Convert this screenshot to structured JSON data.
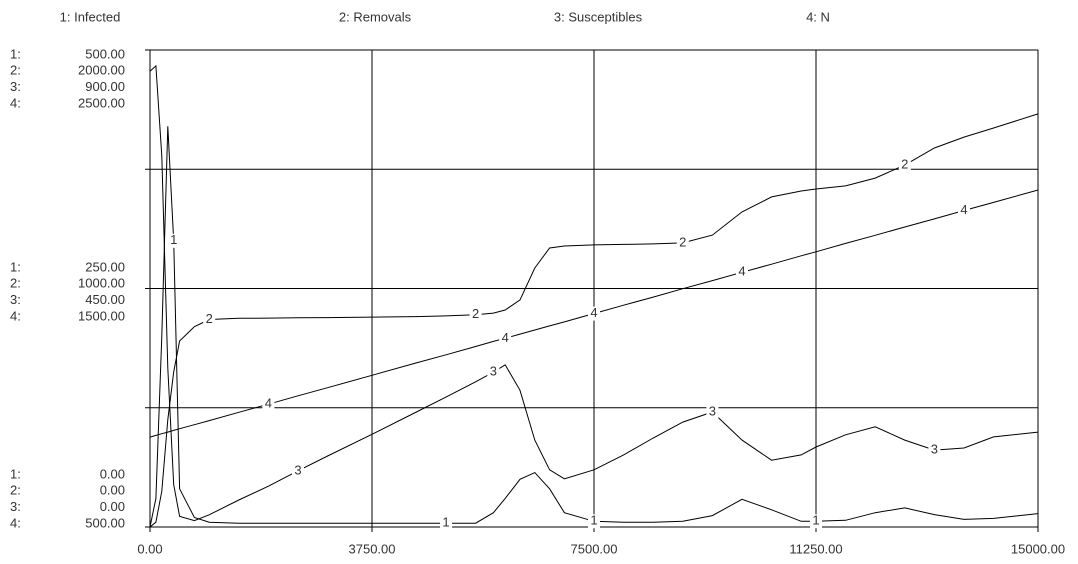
{
  "chart_data": {
    "type": "line",
    "grid": true,
    "x": [
      0,
      100,
      200,
      300,
      400,
      500,
      750,
      1000,
      1500,
      2000,
      2500,
      3000,
      3750,
      4500,
      5000,
      5500,
      5800,
      6000,
      6250,
      6500,
      6750,
      7000,
      7500,
      8000,
      8500,
      9000,
      9500,
      10000,
      10500,
      11000,
      11250,
      11750,
      12250,
      12750,
      13250,
      13750,
      14250,
      15000
    ],
    "xlim": [
      0,
      15000
    ],
    "xticks": [
      {
        "value": 0,
        "label": "0.00"
      },
      {
        "value": 3750,
        "label": "3750.00"
      },
      {
        "value": 7500,
        "label": "7500.00"
      },
      {
        "value": 11250,
        "label": "11250.00"
      },
      {
        "value": 15000,
        "label": "15000.00"
      }
    ],
    "ygrid": [
      0,
      125,
      250,
      375,
      500
    ],
    "series": [
      {
        "name": "1: Infected",
        "axis_label": "1:",
        "marker": "1",
        "color": "#000000",
        "ylim": [
          0,
          500
        ],
        "yticks": [
          {
            "value": 0,
            "label": "0.00"
          },
          {
            "value": 250,
            "label": "250.00"
          },
          {
            "value": 500,
            "label": "500.00"
          }
        ],
        "values": [
          0,
          30,
          200,
          420,
          300,
          40,
          10,
          5,
          4,
          4,
          4,
          4,
          4,
          4,
          4,
          4,
          15,
          30,
          50,
          57,
          40,
          15,
          6,
          5,
          5,
          6,
          12,
          29,
          18,
          6,
          6,
          7,
          15,
          20,
          13,
          8,
          9,
          14
        ]
      },
      {
        "name": "2: Removals",
        "axis_label": "2:",
        "marker": "2",
        "color": "#000000",
        "ylim": [
          0,
          2000
        ],
        "yticks": [
          {
            "value": 0,
            "label": "0.00"
          },
          {
            "value": 1000,
            "label": "1000.00"
          },
          {
            "value": 2000,
            "label": "2000.00"
          }
        ],
        "values": [
          0,
          20,
          150,
          450,
          650,
          780,
          840,
          870,
          875,
          876,
          877,
          878,
          880,
          882,
          885,
          890,
          897,
          910,
          952,
          1086,
          1170,
          1178,
          1183,
          1185,
          1187,
          1191,
          1224,
          1321,
          1384,
          1409,
          1417,
          1430,
          1463,
          1518,
          1589,
          1635,
          1673,
          1732
        ]
      },
      {
        "name": "3: Susceptibles",
        "axis_label": "3:",
        "marker": "3",
        "color": "#000000",
        "ylim": [
          0,
          900
        ],
        "yticks": [
          {
            "value": 0,
            "label": "0.00"
          },
          {
            "value": 450,
            "label": "450.00"
          },
          {
            "value": 900,
            "label": "900.00"
          }
        ],
        "values": [
          860,
          870,
          700,
          300,
          80,
          20,
          12,
          23,
          51,
          77,
          106,
          134,
          175,
          217,
          245,
          274,
          292,
          306,
          258,
          164,
          108,
          91,
          108,
          136,
          168,
          198,
          217,
          164,
          126,
          136,
          151,
          174,
          189,
          164,
          145,
          149,
          170,
          179
        ]
      },
      {
        "name": "4: N",
        "axis_label": "4:",
        "marker": "4",
        "color": "#000000",
        "ylim": [
          500,
          2500
        ],
        "yticks": [
          {
            "value": 500,
            "label": "500.00"
          },
          {
            "value": 1500,
            "label": "1500.00"
          },
          {
            "value": 2500,
            "label": "2500.00"
          }
        ],
        "values": [
          877,
          884,
          891,
          898,
          905,
          912,
          929,
          946,
          981,
          1015,
          1050,
          1084,
          1136,
          1188,
          1222,
          1257,
          1278,
          1291,
          1309,
          1326,
          1343,
          1360,
          1395,
          1430,
          1464,
          1499,
          1533,
          1568,
          1602,
          1637,
          1654,
          1689,
          1723,
          1758,
          1792,
          1827,
          1861,
          1913
        ]
      }
    ]
  }
}
